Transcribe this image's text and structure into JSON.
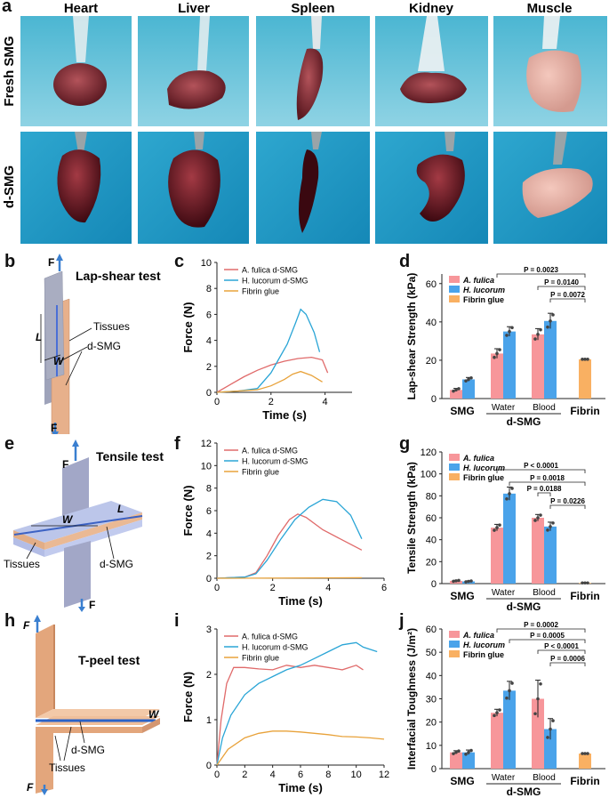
{
  "panel_letters": {
    "a": "a",
    "b": "b",
    "c": "c",
    "d": "d",
    "e": "e",
    "f": "f",
    "g": "g",
    "h": "h",
    "i": "i",
    "j": "j"
  },
  "photo_grid": {
    "columns": [
      "Heart",
      "Liver",
      "Spleen",
      "Kidney",
      "Muscle"
    ],
    "rows": [
      "Fresh SMG",
      "d-SMG"
    ]
  },
  "schematics": {
    "lap": {
      "title": "Lap-shear test",
      "F": "F",
      "L": "L",
      "W": "W",
      "tissues": "Tissues",
      "dsmg": "d-SMG"
    },
    "tensile": {
      "title": "Tensile test",
      "F": "F",
      "L": "L",
      "W": "W",
      "tissues": "Tissues",
      "dsmg": "d-SMG"
    },
    "tpeel": {
      "title": "T-peel test",
      "F": "F",
      "W": "W",
      "tissues": "Tissues",
      "dsmg": "d-SMG"
    }
  },
  "colors": {
    "fulica_line": "#e06a6a",
    "lucorum_line": "#2aa5d6",
    "fibrin_line": "#e8a23a",
    "fulica_bar": "#f7969a",
    "lucorum_bar": "#4aa3ea",
    "fibrin_bar": "#f9b062"
  },
  "chart_data": [
    {
      "id": "c",
      "type": "line",
      "xlabel": "Time (s)",
      "ylabel": "Force (N)",
      "xlim": [
        0,
        5
      ],
      "ylim": [
        0,
        10
      ],
      "xticks": [
        0,
        2,
        4
      ],
      "yticks": [
        0,
        2,
        4,
        6,
        8,
        10
      ],
      "series": [
        {
          "name": "A. fulica d-SMG",
          "points": [
            [
              0,
              0
            ],
            [
              0.5,
              0.6
            ],
            [
              1,
              1.2
            ],
            [
              1.5,
              1.7
            ],
            [
              2,
              2.1
            ],
            [
              2.5,
              2.4
            ],
            [
              3,
              2.6
            ],
            [
              3.5,
              2.7
            ],
            [
              3.9,
              2.5
            ],
            [
              4.1,
              1.5
            ]
          ]
        },
        {
          "name": "H. lucorum d-SMG",
          "points": [
            [
              0,
              0
            ],
            [
              0.8,
              0.1
            ],
            [
              1.5,
              0.3
            ],
            [
              2,
              1.5
            ],
            [
              2.3,
              2.6
            ],
            [
              2.6,
              3.7
            ],
            [
              2.9,
              5.3
            ],
            [
              3.1,
              6.4
            ],
            [
              3.3,
              6.0
            ],
            [
              3.6,
              4.6
            ],
            [
              3.8,
              3.1
            ]
          ]
        },
        {
          "name": "Fibrin glue",
          "points": [
            [
              0,
              0
            ],
            [
              0.8,
              0.1
            ],
            [
              1.5,
              0.2
            ],
            [
              2,
              0.5
            ],
            [
              2.5,
              1.0
            ],
            [
              2.8,
              1.4
            ],
            [
              3.1,
              1.6
            ],
            [
              3.5,
              1.3
            ],
            [
              3.9,
              0.8
            ]
          ]
        }
      ]
    },
    {
      "id": "d",
      "type": "bar",
      "ylabel": "Lap-shear Strength (kPa)",
      "ylim": [
        0,
        65
      ],
      "yticks": [
        0,
        20,
        40,
        60
      ],
      "groups": [
        "SMG",
        "Water",
        "Blood",
        "Fibrin"
      ],
      "supergroup": "d-SMG",
      "legend": [
        "A. fulica",
        "H. lucorum",
        "Fibrin glue"
      ],
      "values": {
        "A. fulica": [
          4.5,
          23.5,
          33.5
        ],
        "H. lucorum": [
          10,
          35,
          40.5
        ],
        "Fibrin glue": [
          20.5
        ]
      },
      "errors": {
        "A. fulica": [
          0.8,
          2.5,
          3
        ],
        "H. lucorum": [
          1,
          2.5,
          4
        ],
        "Fibrin glue": [
          0.7
        ]
      },
      "pvalues": [
        "P = 0.0023",
        "P = 0.0140",
        "P = 0.0072"
      ]
    },
    {
      "id": "f",
      "type": "line",
      "xlabel": "Time (s)",
      "ylabel": "Force (N)",
      "xlim": [
        0,
        6
      ],
      "ylim": [
        0,
        12
      ],
      "xticks": [
        0,
        2,
        4,
        6
      ],
      "yticks": [
        0,
        2,
        4,
        6,
        8,
        10,
        12
      ],
      "series": [
        {
          "name": "A. fulica d-SMG",
          "points": [
            [
              0,
              0
            ],
            [
              1,
              0.1
            ],
            [
              1.4,
              0.5
            ],
            [
              1.8,
              2
            ],
            [
              2.2,
              3.8
            ],
            [
              2.6,
              5.2
            ],
            [
              2.9,
              5.7
            ],
            [
              3.2,
              5.4
            ],
            [
              3.8,
              4.3
            ],
            [
              4.5,
              3.4
            ],
            [
              5.2,
              2.5
            ]
          ]
        },
        {
          "name": "H. lucorum d-SMG",
          "points": [
            [
              0,
              0
            ],
            [
              1,
              0.1
            ],
            [
              1.4,
              0.4
            ],
            [
              1.8,
              1.6
            ],
            [
              2.3,
              3.5
            ],
            [
              2.8,
              5.2
            ],
            [
              3.3,
              6.3
            ],
            [
              3.8,
              7.0
            ],
            [
              4.3,
              6.8
            ],
            [
              4.8,
              5.6
            ],
            [
              5.2,
              3.5
            ]
          ]
        },
        {
          "name": "Fibrin glue",
          "points": [
            [
              0,
              0
            ],
            [
              5.2,
              0.05
            ]
          ]
        }
      ]
    },
    {
      "id": "g",
      "type": "bar",
      "ylabel": "Tensile Strength (kPa)",
      "ylim": [
        0,
        120
      ],
      "yticks": [
        0,
        20,
        40,
        60,
        80,
        100,
        120
      ],
      "groups": [
        "SMG",
        "Water",
        "Blood",
        "Fibrin"
      ],
      "supergroup": "d-SMG",
      "legend": [
        "A. fulica",
        "H. lucorum",
        "Fibrin glue"
      ],
      "values": {
        "A. fulica": [
          2.5,
          51,
          60
        ],
        "H. lucorum": [
          2,
          82,
          52
        ],
        "Fibrin glue": [
          0.6
        ]
      },
      "errors": {
        "A. fulica": [
          0.5,
          3,
          3
        ],
        "H. lucorum": [
          0.5,
          6,
          4
        ],
        "Fibrin glue": [
          0.2
        ]
      },
      "pvalues": [
        "P < 0.0001",
        "P = 0.0018",
        "P = 0.0188",
        "P = 0.0226"
      ]
    },
    {
      "id": "i",
      "type": "line",
      "xlabel": "Time (s)",
      "ylabel": "Force (N)",
      "xlim": [
        0,
        12
      ],
      "ylim": [
        0,
        3
      ],
      "xticks": [
        0,
        2,
        4,
        6,
        8,
        10,
        12
      ],
      "yticks": [
        0,
        1,
        2,
        3
      ],
      "series": [
        {
          "name": "A. fulica d-SMG",
          "points": [
            [
              0,
              0
            ],
            [
              0.3,
              1.0
            ],
            [
              0.7,
              1.8
            ],
            [
              1.2,
              2.15
            ],
            [
              2,
              2.15
            ],
            [
              3,
              2.12
            ],
            [
              4,
              2.1
            ],
            [
              5,
              2.2
            ],
            [
              6,
              2.15
            ],
            [
              7,
              2.2
            ],
            [
              8,
              2.15
            ],
            [
              9,
              2.1
            ],
            [
              10,
              2.2
            ],
            [
              10.5,
              2.1
            ]
          ]
        },
        {
          "name": "H. lucorum d-SMG",
          "points": [
            [
              0,
              0
            ],
            [
              0.4,
              0.6
            ],
            [
              1,
              1.1
            ],
            [
              2,
              1.55
            ],
            [
              3,
              1.8
            ],
            [
              4,
              1.95
            ],
            [
              5,
              2.1
            ],
            [
              6,
              2.2
            ],
            [
              7,
              2.35
            ],
            [
              8,
              2.5
            ],
            [
              9,
              2.65
            ],
            [
              10,
              2.7
            ],
            [
              10.5,
              2.6
            ],
            [
              11.5,
              2.5
            ]
          ]
        },
        {
          "name": "Fibrin glue",
          "points": [
            [
              0,
              0
            ],
            [
              0.8,
              0.35
            ],
            [
              2,
              0.6
            ],
            [
              3,
              0.7
            ],
            [
              4,
              0.75
            ],
            [
              5,
              0.75
            ],
            [
              6,
              0.73
            ],
            [
              7,
              0.7
            ],
            [
              8,
              0.67
            ],
            [
              9,
              0.63
            ],
            [
              10,
              0.62
            ],
            [
              11,
              0.6
            ],
            [
              12,
              0.57
            ]
          ]
        }
      ]
    },
    {
      "id": "j",
      "type": "bar",
      "ylabel": "Interfacial Toughness (J/m²)",
      "ylim": [
        0,
        60
      ],
      "yticks": [
        0,
        10,
        20,
        30,
        40,
        50,
        60
      ],
      "groups": [
        "SMG",
        "Water",
        "Blood",
        "Fibrin"
      ],
      "supergroup": "d-SMG",
      "legend": [
        "A. fulica",
        "H. lucorum",
        "Fibrin glue"
      ],
      "values": {
        "A. fulica": [
          7,
          24,
          30
        ],
        "H. lucorum": [
          7,
          33.5,
          17
        ],
        "Fibrin glue": [
          6.5
        ]
      },
      "errors": {
        "A. fulica": [
          0.7,
          1.5,
          8
        ],
        "H. lucorum": [
          1,
          4,
          4.5
        ],
        "Fibrin glue": [
          0.5
        ]
      },
      "pvalues": [
        "P = 0.0002",
        "P = 0.0005",
        "P < 0.0001",
        "P = 0.0006"
      ]
    }
  ]
}
